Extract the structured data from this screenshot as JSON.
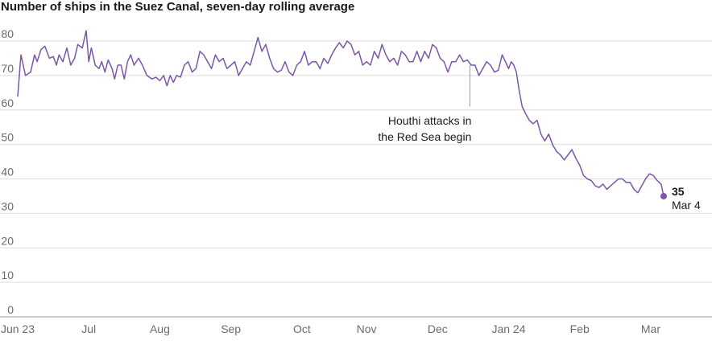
{
  "chart_data": {
    "type": "line",
    "title": "Number of ships in the Suez Canal, seven-day rolling average",
    "xlabel": "",
    "ylabel": "",
    "ylim": [
      0,
      80
    ],
    "yticks": [
      0,
      10,
      20,
      30,
      40,
      50,
      60,
      70,
      80
    ],
    "x_ticks": [
      {
        "label": "Jun 23",
        "day": 0
      },
      {
        "label": "Jul",
        "day": 11
      },
      {
        "label": "Aug",
        "day": 22
      },
      {
        "label": "Sep",
        "day": 33
      },
      {
        "label": "Oct",
        "day": 44
      },
      {
        "label": "Nov",
        "day": 54
      },
      {
        "label": "Dec",
        "day": 65
      },
      {
        "label": "Jan 24",
        "day": 76
      },
      {
        "label": "Feb",
        "day": 87
      },
      {
        "label": "Mar",
        "day": 98
      }
    ],
    "x_range_days": [
      0,
      101
    ],
    "series": [
      {
        "name": "Seven-day rolling average",
        "color": "#7b56a8",
        "points": [
          [
            0,
            64
          ],
          [
            0.5,
            76
          ],
          [
            1.2,
            70
          ],
          [
            2.0,
            71
          ],
          [
            2.6,
            76
          ],
          [
            3.0,
            74
          ],
          [
            3.6,
            77.5
          ],
          [
            4.2,
            78.5
          ],
          [
            4.9,
            75
          ],
          [
            5.5,
            75.5
          ],
          [
            6.0,
            73
          ],
          [
            6.4,
            76
          ],
          [
            7.0,
            74
          ],
          [
            7.6,
            78
          ],
          [
            8.2,
            73
          ],
          [
            8.8,
            75
          ],
          [
            9.3,
            79
          ],
          [
            10.0,
            78
          ],
          [
            10.6,
            83
          ],
          [
            11.0,
            74
          ],
          [
            11.4,
            78
          ],
          [
            12.0,
            73
          ],
          [
            12.6,
            72
          ],
          [
            13.0,
            74
          ],
          [
            13.5,
            71
          ],
          [
            14.0,
            74.5
          ],
          [
            14.6,
            72
          ],
          [
            15.0,
            69
          ],
          [
            15.5,
            73
          ],
          [
            16.0,
            73
          ],
          [
            16.5,
            69
          ],
          [
            17.0,
            74
          ],
          [
            17.5,
            76
          ],
          [
            18.0,
            73
          ],
          [
            18.7,
            75
          ],
          [
            19.3,
            73
          ],
          [
            20.0,
            70
          ],
          [
            20.8,
            69
          ],
          [
            21.4,
            69.5
          ],
          [
            22.0,
            68.5
          ],
          [
            22.6,
            70
          ],
          [
            23.1,
            67
          ],
          [
            23.6,
            70
          ],
          [
            24.1,
            68
          ],
          [
            24.6,
            70
          ],
          [
            25.2,
            69.5
          ],
          [
            25.8,
            73
          ],
          [
            26.4,
            74
          ],
          [
            27.0,
            71
          ],
          [
            27.6,
            72
          ],
          [
            28.2,
            77
          ],
          [
            28.8,
            76
          ],
          [
            29.4,
            74
          ],
          [
            30.0,
            72
          ],
          [
            30.6,
            76
          ],
          [
            31.2,
            74
          ],
          [
            31.8,
            75
          ],
          [
            32.4,
            72
          ],
          [
            33.0,
            73
          ],
          [
            33.6,
            74
          ],
          [
            34.2,
            70
          ],
          [
            34.8,
            72
          ],
          [
            35.4,
            74
          ],
          [
            36.0,
            73
          ],
          [
            36.6,
            77
          ],
          [
            37.2,
            81
          ],
          [
            37.8,
            77
          ],
          [
            38.4,
            79
          ],
          [
            39.0,
            75
          ],
          [
            39.6,
            72
          ],
          [
            40.2,
            71
          ],
          [
            40.8,
            71.5
          ],
          [
            41.4,
            74
          ],
          [
            42.0,
            71
          ],
          [
            42.6,
            70
          ],
          [
            43.2,
            73
          ],
          [
            43.8,
            74
          ],
          [
            44.4,
            77
          ],
          [
            45.0,
            73
          ],
          [
            45.6,
            74
          ],
          [
            46.2,
            74
          ],
          [
            46.8,
            72
          ],
          [
            47.4,
            75
          ],
          [
            48.0,
            73.5
          ],
          [
            48.6,
            76
          ],
          [
            49.2,
            78
          ],
          [
            49.8,
            79.5
          ],
          [
            50.4,
            78
          ],
          [
            51.0,
            80
          ],
          [
            51.6,
            79
          ],
          [
            52.2,
            76
          ],
          [
            52.8,
            77
          ],
          [
            53.4,
            73
          ],
          [
            54.0,
            74
          ],
          [
            54.6,
            73
          ],
          [
            55.2,
            77
          ],
          [
            55.8,
            75
          ],
          [
            56.4,
            79
          ],
          [
            57.0,
            76
          ],
          [
            57.6,
            74
          ],
          [
            58.2,
            75
          ],
          [
            58.8,
            73
          ],
          [
            59.4,
            77
          ],
          [
            60.0,
            76
          ],
          [
            60.6,
            74
          ],
          [
            61.2,
            74
          ],
          [
            61.8,
            77
          ],
          [
            62.4,
            74
          ],
          [
            63.0,
            77
          ],
          [
            63.6,
            75
          ],
          [
            64.2,
            79
          ],
          [
            64.8,
            78
          ],
          [
            65.4,
            75
          ],
          [
            66.0,
            74
          ],
          [
            66.6,
            71
          ],
          [
            67.2,
            74
          ],
          [
            67.8,
            74
          ],
          [
            68.4,
            76
          ],
          [
            69.0,
            74
          ],
          [
            69.6,
            74.5
          ],
          [
            70.2,
            73
          ],
          [
            70.8,
            73
          ],
          [
            71.4,
            70
          ],
          [
            72.0,
            72
          ],
          [
            72.6,
            74
          ],
          [
            73.2,
            73
          ],
          [
            73.8,
            71
          ],
          [
            74.4,
            71.5
          ],
          [
            75.0,
            76
          ],
          [
            75.5,
            74
          ],
          [
            76.0,
            72
          ],
          [
            76.4,
            74
          ],
          [
            76.8,
            73
          ],
          [
            77.2,
            71
          ],
          [
            77.6,
            66
          ],
          [
            78.1,
            61
          ],
          [
            78.6,
            59
          ],
          [
            79.2,
            57
          ],
          [
            79.8,
            56
          ],
          [
            80.4,
            57
          ],
          [
            81.0,
            53
          ],
          [
            81.6,
            51
          ],
          [
            82.2,
            53
          ],
          [
            82.8,
            50
          ],
          [
            83.4,
            48
          ],
          [
            84.0,
            47
          ],
          [
            84.6,
            45.5
          ],
          [
            85.2,
            47
          ],
          [
            85.8,
            48.5
          ],
          [
            86.4,
            46
          ],
          [
            87.0,
            44
          ],
          [
            87.6,
            41
          ],
          [
            88.2,
            40
          ],
          [
            88.8,
            39.5
          ],
          [
            89.4,
            38
          ],
          [
            90.0,
            37.5
          ],
          [
            90.6,
            38.5
          ],
          [
            91.2,
            37
          ],
          [
            91.8,
            38
          ],
          [
            92.4,
            39
          ],
          [
            93.0,
            40
          ],
          [
            93.6,
            40
          ],
          [
            94.2,
            39
          ],
          [
            94.8,
            39
          ],
          [
            95.4,
            37
          ],
          [
            96.0,
            36
          ],
          [
            96.6,
            38
          ],
          [
            97.2,
            40
          ],
          [
            97.8,
            41.5
          ],
          [
            98.4,
            41
          ],
          [
            99.0,
            39.5
          ],
          [
            99.6,
            38.5
          ],
          [
            100.0,
            35
          ]
        ]
      }
    ],
    "annotation": {
      "text_lines": [
        "Houthi attacks in",
        "the Red Sea begin"
      ],
      "day": 70,
      "y_from": 73,
      "y_to": 61
    },
    "end_label": {
      "value": "35",
      "date": "Mar 4"
    }
  }
}
